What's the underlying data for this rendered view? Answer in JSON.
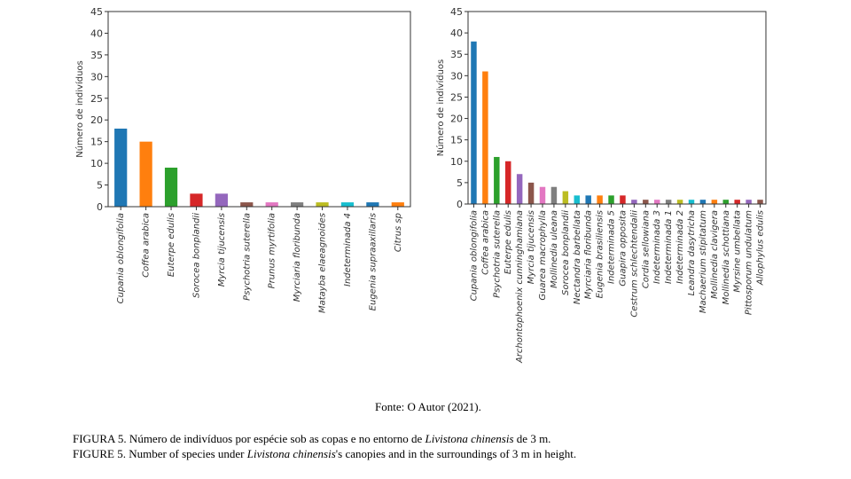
{
  "chart_data": [
    {
      "type": "bar",
      "ylabel": "Número de indivíduos",
      "ylim": [
        0,
        45
      ],
      "yticks": [
        0,
        5,
        10,
        15,
        20,
        25,
        30,
        35,
        40,
        45
      ],
      "grid": false,
      "categories": [
        "Cupania oblongifolia",
        "Coffea arabica",
        "Euterpe edulis",
        "Sorocea bonplandii",
        "Myrcia tijucensis",
        "Psychotria suterella",
        "Prunus myrtifolia",
        "Myrciaria floribunda",
        "Matayba elaeagnoides",
        "Indeterminada 4",
        "Eugenia supraaxillaris",
        "Citrus sp"
      ],
      "values": [
        18,
        15,
        9,
        3,
        3,
        1,
        1,
        1,
        1,
        1,
        1,
        1
      ],
      "colors": [
        "#1f77b4",
        "#ff7f0e",
        "#2ca02c",
        "#d62728",
        "#9467bd",
        "#8c564b",
        "#e377c2",
        "#7f7f7f",
        "#bcbd22",
        "#17becf",
        "#1f77b4",
        "#ff7f0e"
      ]
    },
    {
      "type": "bar",
      "ylabel": "Número de indivíduos",
      "ylim": [
        0,
        45
      ],
      "yticks": [
        0,
        5,
        10,
        15,
        20,
        25,
        30,
        35,
        40,
        45
      ],
      "grid": false,
      "categories": [
        "Cupania oblongifolia",
        "Coffea arabica",
        "Psychotria suterella",
        "Euterpe edulis",
        "Archontophoenix cunninghamiana",
        "Myrcia tijucensis",
        "Guarea macrophylla",
        "Mollinedia uleana",
        "Sorocea bonplandii",
        "Nectandra barbellata",
        "Myrciaria floribunda",
        "Eugenia brasiliensis",
        "Indeterminada 5",
        "Guapira opposita",
        "Cestrum schlechtendalii",
        "Cordia sellowiana",
        "Indeterminada 3",
        "Indeterminada 1",
        "Indeterminada 2",
        "Leandra dasytricha",
        "Machaerium stipitatum",
        "Mollinedia clavigera",
        "Mollinedia schottiana",
        "Myrsine umbellata",
        "Pittosporum undulatum",
        "Allophylus edulis"
      ],
      "values": [
        38,
        31,
        11,
        10,
        7,
        5,
        4,
        4,
        3,
        2,
        2,
        2,
        2,
        2,
        1,
        1,
        1,
        1,
        1,
        1,
        1,
        1,
        1,
        1,
        1,
        1
      ],
      "colors": [
        "#1f77b4",
        "#ff7f0e",
        "#2ca02c",
        "#d62728",
        "#9467bd",
        "#8c564b",
        "#e377c2",
        "#7f7f7f",
        "#bcbd22",
        "#17becf",
        "#1f77b4",
        "#ff7f0e",
        "#2ca02c",
        "#d62728",
        "#9467bd",
        "#8c564b",
        "#e377c2",
        "#7f7f7f",
        "#bcbd22",
        "#17becf",
        "#1f77b4",
        "#ff7f0e",
        "#2ca02c",
        "#d62728",
        "#9467bd",
        "#8c564b"
      ]
    }
  ],
  "source": "Fonte: O Autor (2021).",
  "caption_pt": {
    "before": "FIGURA 5. Número de indivíduos por espécie sob as copas e no entorno de ",
    "species": "Livistona chinensis",
    "after": " de 3 m."
  },
  "caption_en": {
    "before": "FIGURE 5. Number of species under ",
    "species": "Livistona chinensis",
    "after": "'s canopies and in the surroundings of 3 m in height."
  }
}
